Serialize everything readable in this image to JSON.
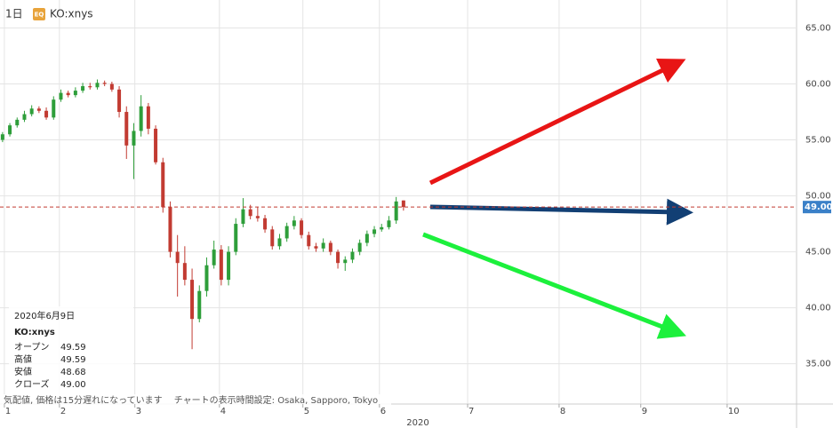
{
  "header": {
    "interval": "1日",
    "badge": "EQ",
    "symbol": "KO:xnys"
  },
  "chart_data": {
    "type": "candlestick",
    "x": [
      0,
      2,
      4,
      6,
      8,
      10,
      12,
      14,
      16,
      18,
      20,
      22,
      24,
      26,
      28,
      30,
      32,
      34,
      36,
      38,
      40,
      42,
      44,
      46,
      48,
      50,
      52,
      54,
      56,
      58,
      60,
      62,
      64,
      66,
      68,
      70,
      72,
      74,
      76,
      78,
      80,
      82,
      84,
      86,
      88,
      90,
      92,
      94,
      96,
      98,
      100,
      102,
      104,
      106,
      108,
      110
    ],
    "open": [
      55.0,
      55.5,
      56.3,
      56.8,
      57.3,
      57.8,
      57.6,
      57.0,
      58.6,
      59.2,
      59.0,
      59.4,
      59.8,
      59.7,
      60.1,
      60.0,
      59.5,
      57.5,
      54.5,
      55.8,
      58.0,
      56.0,
      53.0,
      49.0,
      45.0,
      44.0,
      42.5,
      39.0,
      41.5,
      43.8,
      45.2,
      42.5,
      45.0,
      47.5,
      48.8,
      48.2,
      48.0,
      47.0,
      45.5,
      46.2,
      47.3,
      47.8,
      46.5,
      45.5,
      45.3,
      45.8,
      45.0,
      44.0,
      44.3,
      45.0,
      45.8,
      46.6,
      47.0,
      47.2,
      47.8,
      49.59
    ],
    "high": [
      55.7,
      56.5,
      57.0,
      57.6,
      58.1,
      58.0,
      57.9,
      58.9,
      59.5,
      59.4,
      59.7,
      60.1,
      60.1,
      60.4,
      60.3,
      60.2,
      59.8,
      58.0,
      56.5,
      59.0,
      58.3,
      56.3,
      53.4,
      49.5,
      46.5,
      45.5,
      43.5,
      42.0,
      44.5,
      46.0,
      45.6,
      45.5,
      48.0,
      49.8,
      49.2,
      49.0,
      48.3,
      47.3,
      46.6,
      47.6,
      48.2,
      48.0,
      46.8,
      45.8,
      46.2,
      46.0,
      45.2,
      44.6,
      45.3,
      46.1,
      46.9,
      47.3,
      47.5,
      48.2,
      49.9,
      49.59
    ],
    "low": [
      54.8,
      55.3,
      56.1,
      56.6,
      57.1,
      57.4,
      56.8,
      56.8,
      58.4,
      58.8,
      58.8,
      59.2,
      59.5,
      59.5,
      59.8,
      59.3,
      57.0,
      53.3,
      51.5,
      55.3,
      55.5,
      52.8,
      48.5,
      44.5,
      41.0,
      42.0,
      36.3,
      38.7,
      41.0,
      43.5,
      42.0,
      42.0,
      44.7,
      47.2,
      47.9,
      47.7,
      46.7,
      45.2,
      45.2,
      45.9,
      47.0,
      46.2,
      45.2,
      45.0,
      45.0,
      44.7,
      43.5,
      43.3,
      44.0,
      44.7,
      45.5,
      46.3,
      46.8,
      47.0,
      47.5,
      48.68
    ],
    "close": [
      55.5,
      56.3,
      56.8,
      57.3,
      57.8,
      57.6,
      57.0,
      58.6,
      59.2,
      59.0,
      59.4,
      59.8,
      59.7,
      60.1,
      60.0,
      59.5,
      57.5,
      54.5,
      55.8,
      58.0,
      56.0,
      53.0,
      49.0,
      45.0,
      44.0,
      42.5,
      39.0,
      41.5,
      43.8,
      45.2,
      42.5,
      45.0,
      47.5,
      48.8,
      48.2,
      48.0,
      47.0,
      45.5,
      46.2,
      47.3,
      47.8,
      46.5,
      45.5,
      45.3,
      45.8,
      45.0,
      44.0,
      44.3,
      45.0,
      45.8,
      46.6,
      47.0,
      47.2,
      47.8,
      49.5,
      49.0
    ],
    "up_color": "#2e9e3a",
    "down_color": "#c23b32",
    "xlim": [
      -0.7,
      217.6
    ],
    "xticks": [
      {
        "value": 0.5,
        "label": "1"
      },
      {
        "value": 15.6,
        "label": "2"
      },
      {
        "value": 36.3,
        "label": "3"
      },
      {
        "value": 59.5,
        "label": "4"
      },
      {
        "value": 82.4,
        "label": "5"
      },
      {
        "value": 103.4,
        "label": "6"
      },
      {
        "value": 127.6,
        "label": "7"
      },
      {
        "value": 152.7,
        "label": "8"
      },
      {
        "value": 175.1,
        "label": "9"
      },
      {
        "value": 198.8,
        "label": "10"
      }
    ],
    "x_axis_year": "2020",
    "ylim": [
      31.4,
      67.5
    ],
    "yticks": [
      {
        "value": 35,
        "label": "35.00"
      },
      {
        "value": 40,
        "label": "40.00"
      },
      {
        "value": 45,
        "label": "45.00"
      },
      {
        "value": 50,
        "label": "50.00"
      },
      {
        "value": 55,
        "label": "55.00"
      },
      {
        "value": 60,
        "label": "60.00"
      },
      {
        "value": 65,
        "label": "65.00"
      }
    ],
    "grid": true,
    "price_line": {
      "value": 49,
      "label": "49.00",
      "color": "#c23b32"
    }
  },
  "info": {
    "date": "2020年6月9日",
    "symbol": "KO:xnys",
    "rows": [
      [
        "オープン",
        "49.59"
      ],
      [
        "高値",
        "49.59"
      ],
      [
        "安値",
        "48.68"
      ],
      [
        "クローズ",
        "49.00"
      ]
    ]
  },
  "note": "気配値, 価格は15分遅れになっています　 チャートの表示時間設定: Osaka, Sapporo, Tokyo"
}
